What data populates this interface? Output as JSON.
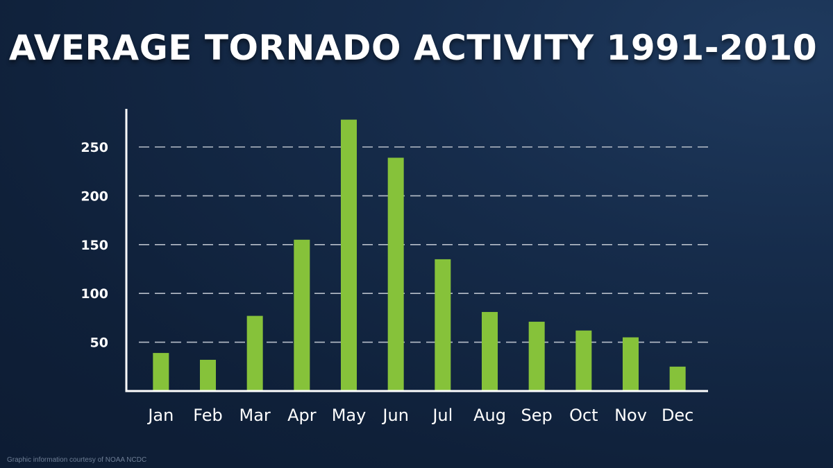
{
  "title": "AVERAGE TORNADO ACTIVITY 1991-2010",
  "credit": "Graphic information courtesy of NOAA NCDC",
  "colors": {
    "bar": "#86c23a",
    "background": "#13253f",
    "axis": "#ffffff",
    "grid": "#b8bfca"
  },
  "chart_data": {
    "type": "bar",
    "title": "AVERAGE TORNADO ACTIVITY 1991-2010",
    "xlabel": "",
    "ylabel": "",
    "categories": [
      "Jan",
      "Feb",
      "Mar",
      "Apr",
      "May",
      "Jun",
      "Jul",
      "Aug",
      "Sep",
      "Oct",
      "Nov",
      "Dec"
    ],
    "values": [
      39,
      32,
      77,
      155,
      278,
      239,
      135,
      81,
      71,
      62,
      55,
      25
    ],
    "yticks": [
      50,
      100,
      150,
      200,
      250
    ],
    "ytick_labels": [
      "50",
      "100",
      "150",
      "200",
      "250"
    ],
    "ylim": [
      0,
      290
    ],
    "grid": "horizontal dashed",
    "legend": "none"
  }
}
